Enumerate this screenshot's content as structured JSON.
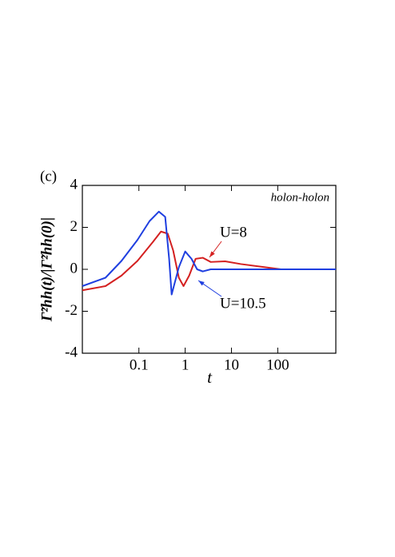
{
  "chart_data": {
    "type": "line",
    "panel_label": "(c)",
    "annotation": "holon-holon",
    "x_label": "t",
    "y_label": "Γ̃²hh(t)/|Γ̃²hh(0)|",
    "log_x": true,
    "xlim": [
      0.006,
      1800
    ],
    "xticks": [
      0.1,
      1,
      10,
      100
    ],
    "ylim": [
      -4,
      4
    ],
    "yticks": [
      -4,
      -2,
      0,
      2,
      4
    ],
    "series": [
      {
        "name": "U=8",
        "color": "#d42020",
        "x": [
          0.006,
          0.019,
          0.042,
          0.093,
          0.2,
          0.3,
          0.42,
          0.55,
          0.73,
          0.92,
          1.22,
          1.68,
          2.4,
          3.56,
          7.3,
          16,
          53,
          117,
          1800
        ],
        "values": [
          -1.0,
          -0.8,
          -0.3,
          0.4,
          1.3,
          1.8,
          1.7,
          0.9,
          -0.4,
          -0.8,
          -0.3,
          0.5,
          0.55,
          0.35,
          0.38,
          0.25,
          0.1,
          0,
          0
        ]
      },
      {
        "name": "U=10.5",
        "color": "#1f3fe0",
        "x": [
          0.006,
          0.019,
          0.042,
          0.093,
          0.17,
          0.27,
          0.37,
          0.45,
          0.51,
          0.73,
          1,
          1.37,
          1.81,
          2.4,
          3.56,
          1800
        ],
        "values": [
          -0.8,
          -0.4,
          0.4,
          1.4,
          2.3,
          2.75,
          2.5,
          0.5,
          -1.2,
          0.1,
          0.85,
          0.5,
          0,
          -0.1,
          0,
          0
        ]
      }
    ]
  }
}
